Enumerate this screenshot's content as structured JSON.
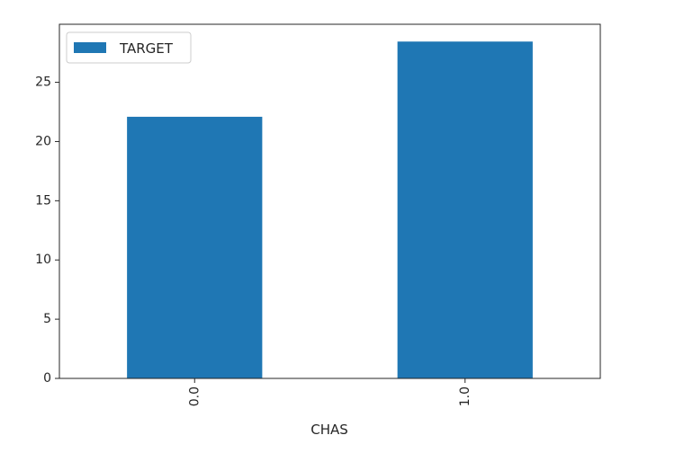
{
  "chart_data": {
    "type": "bar",
    "categories": [
      "0.0",
      "1.0"
    ],
    "series": [
      {
        "name": "TARGET",
        "values": [
          22.09,
          28.44
        ],
        "color": "#1f77b4"
      }
    ],
    "title": "",
    "xlabel": "CHAS",
    "ylabel": "",
    "ylim": [
      0,
      29.9
    ],
    "yticks": [
      0,
      5,
      10,
      15,
      20,
      25
    ],
    "xtick_rotation": 90,
    "grid": false,
    "legend_position": "upper-left"
  }
}
